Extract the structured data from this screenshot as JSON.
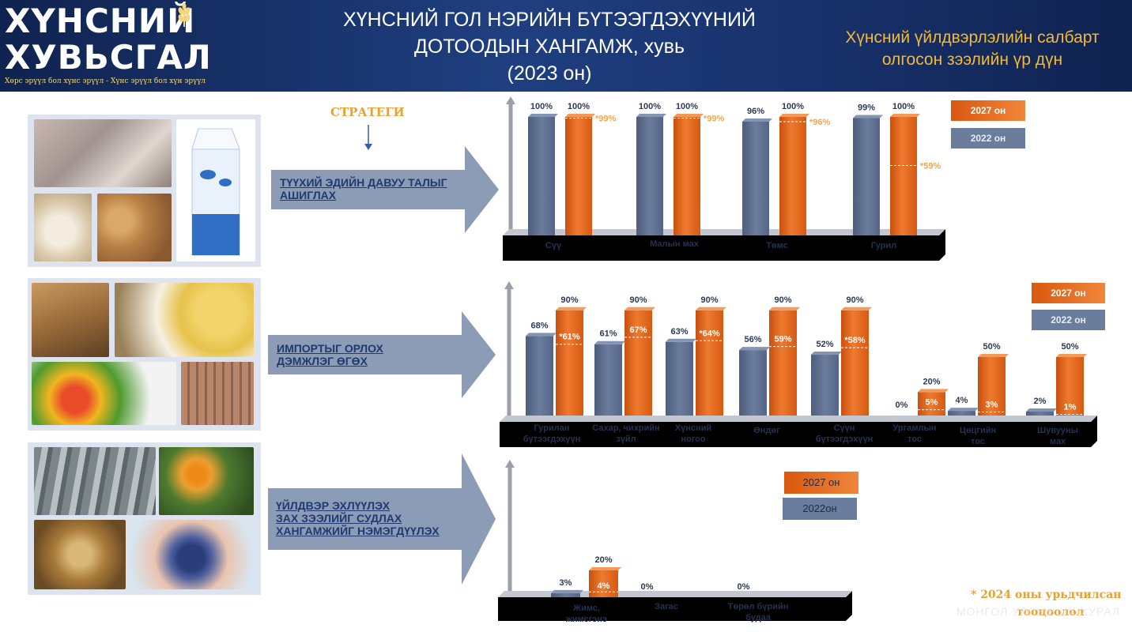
{
  "header": {
    "logo_line1": "ХҮНСНИЙ",
    "logo_line2": "ХУВЬСГАЛ",
    "logo_tagline": "Хөрс эрүүл бол хүнс эрүүл - Хүнс эрүүл бол хүн эрүүл",
    "title_line1": "ХҮНСНИЙ ГОЛ НЭРИЙН БҮТЭЭГДЭХҮҮНИЙ",
    "title_line2": "ДОТООДЫН ХАНГАМЖ, хувь",
    "title_line3": "(2023 он)",
    "subtitle_line1": "Хүнсний үйлдвэрлэлийн салбарт",
    "subtitle_line2": "олгосон зээлийн үр дүн"
  },
  "strategy_label": "СТРАТЕГИ",
  "strategies": [
    {
      "line1": "ТҮҮХИЙ ЭДИЙН ДАВУУ ТАЛЫГ",
      "line2": "АШИГЛАХ",
      "line3": ""
    },
    {
      "line1": "ИМПОРТЫГ ОРЛОХ",
      "line2": "ДЭМЖЛЭГ ӨГӨХ",
      "line3": ""
    },
    {
      "line1": "ҮЙЛДВЭР ЭХЛҮҮЛЭХ",
      "line2": "ЗАХ ЗЭЭЛИЙГ СУДЛАХ",
      "line3": "ХАНГАМЖИЙГ НЭМЭГДҮҮЛЭХ"
    }
  ],
  "colors": {
    "series_2022": "#5d6f8f",
    "series_2027": "#e8661c",
    "marker": "#f5a742",
    "header": "#1b3370"
  },
  "chart_data": [
    {
      "type": "bar",
      "categories": [
        "Сүү",
        "Малын мах",
        "Төмс",
        "Гурил"
      ],
      "series": [
        {
          "name": "2022 он",
          "values": [
            100,
            100,
            96,
            99
          ],
          "labels": [
            "100%",
            "100%",
            "96%",
            "99%"
          ]
        },
        {
          "name": "2027 он",
          "values": [
            100,
            100,
            100,
            100
          ],
          "labels": [
            "100%",
            "100%",
            "100%",
            "100%"
          ]
        }
      ],
      "markers": [
        99,
        99,
        96,
        59
      ],
      "marker_labels": [
        "*99%",
        "*99%",
        "*96%",
        "*59%"
      ],
      "ylim": [
        0,
        100
      ],
      "legend": "top-right"
    },
    {
      "type": "bar",
      "categories": [
        "Гурилан бүтээгдэхүүн",
        "Сахар, чихрийн зүйл",
        "Хүнсний ногоо",
        "Өндөг",
        "Сүүн бүтээгдэхүүн",
        "Ургамлын тос",
        "Цөцгийн тос",
        "Шувууны мах"
      ],
      "series": [
        {
          "name": "2022 он",
          "values": [
            68,
            61,
            63,
            56,
            52,
            0,
            4,
            2
          ],
          "labels": [
            "68%",
            "61%",
            "63%",
            "56%",
            "52%",
            "0%",
            "4%",
            "2%"
          ]
        },
        {
          "name": "2027 он",
          "values": [
            90,
            90,
            90,
            90,
            90,
            20,
            50,
            50
          ],
          "labels": [
            "90%",
            "90%",
            "90%",
            "90%",
            "90%",
            "20%",
            "50%",
            "50%"
          ]
        }
      ],
      "markers": [
        61,
        67,
        64,
        59,
        58,
        5,
        3,
        1
      ],
      "marker_labels": [
        "*61%",
        "67%",
        "*64%",
        "59%",
        "*58%",
        "5%",
        "3%",
        "1%"
      ],
      "ylim": [
        0,
        100
      ],
      "legend": "top-right"
    },
    {
      "type": "bar",
      "categories": [
        "Жимс, жимсгэнэ",
        "Загас",
        "Төрөл бүрийн будаа"
      ],
      "series": [
        {
          "name": "2022он",
          "values": [
            3,
            0,
            0
          ],
          "labels": [
            "3%",
            "0%",
            "0%"
          ]
        },
        {
          "name": "2027 он",
          "values": [
            20,
            0,
            0
          ],
          "labels": [
            "20%",
            "",
            ""
          ]
        }
      ],
      "markers": [
        4,
        null,
        null
      ],
      "marker_labels": [
        "4%",
        "",
        ""
      ],
      "ylim": [
        0,
        100
      ],
      "legend": "top-right"
    }
  ],
  "footnote_line1": "* 2024 оны урьдчилсан",
  "footnote_line2": "тооцоолол",
  "watermark": "МОНГОЛ УЛСЫН ИХ ХУРАЛ"
}
